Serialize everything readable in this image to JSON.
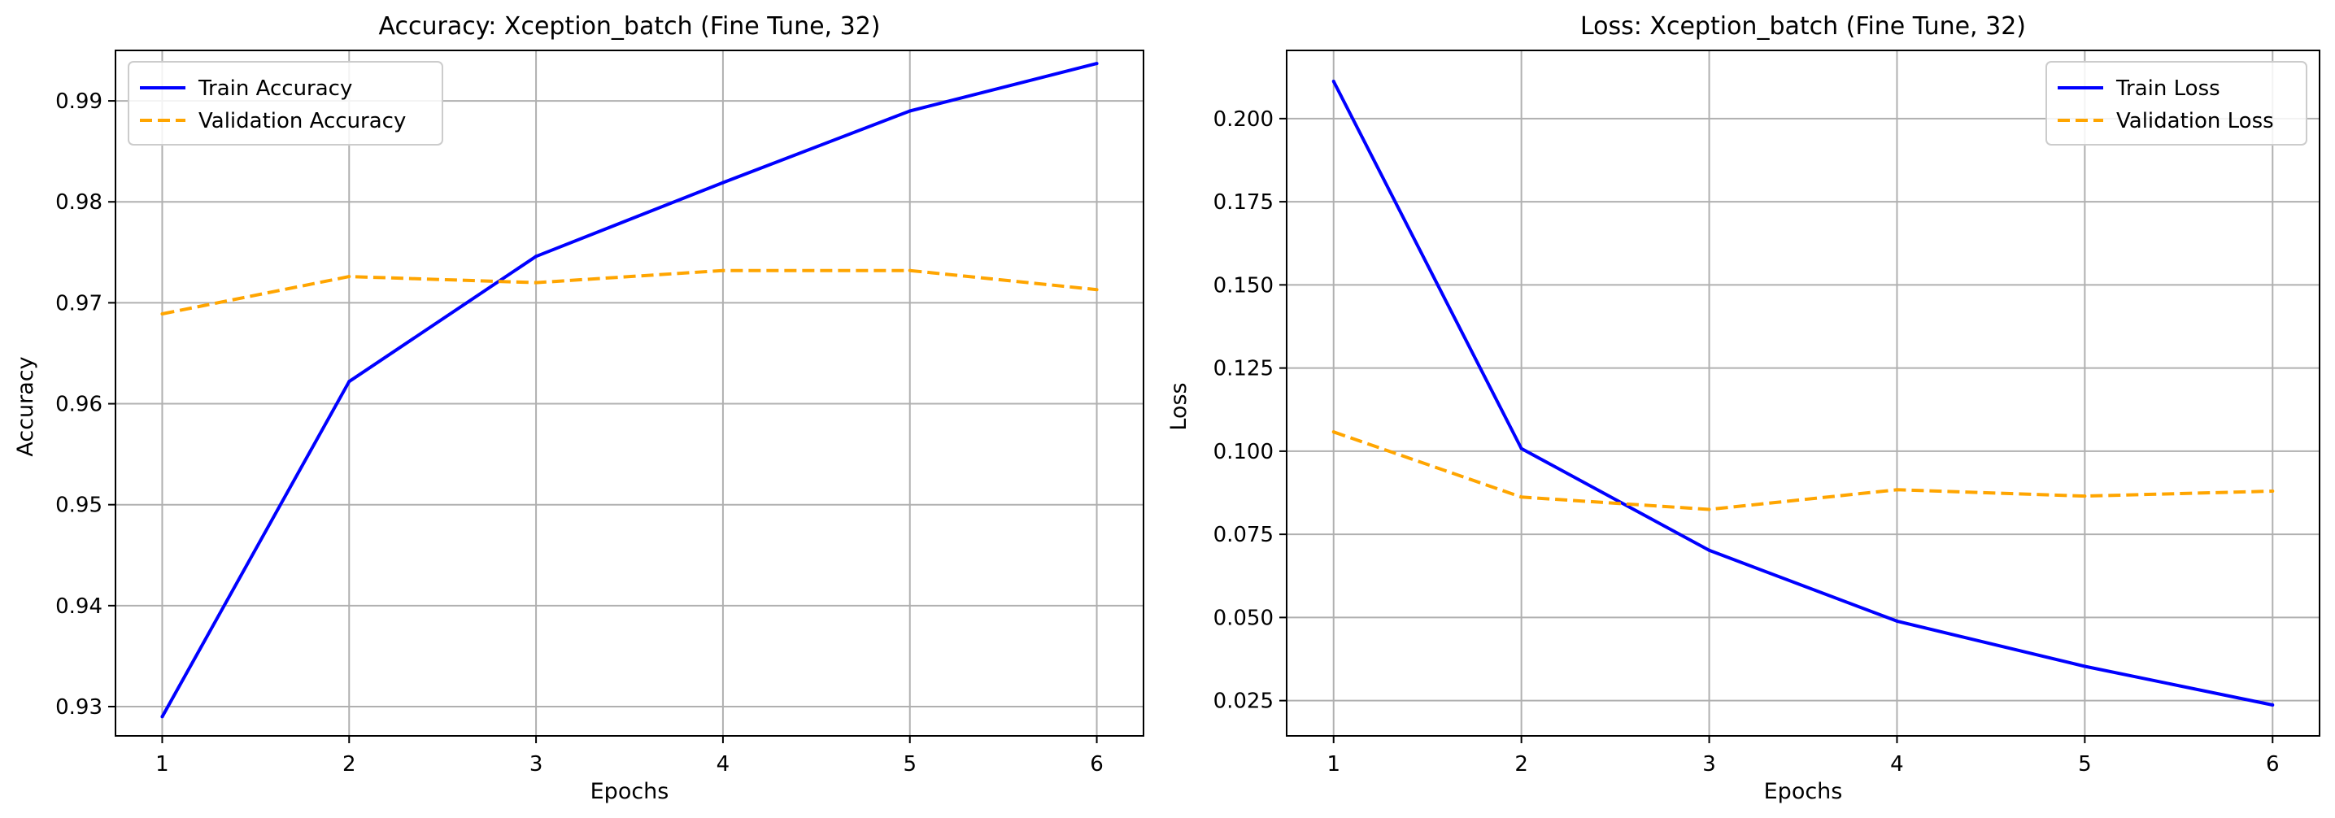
{
  "chart_data": [
    {
      "type": "line",
      "title": "Accuracy: Xception_batch (Fine Tune, 32)",
      "xlabel": "Epochs",
      "ylabel": "Accuracy",
      "x": [
        1,
        2,
        3,
        4,
        5,
        6
      ],
      "xticks": [
        "1",
        "2",
        "3",
        "4",
        "5",
        "6"
      ],
      "yticks": [
        "0.93",
        "0.94",
        "0.95",
        "0.96",
        "0.97",
        "0.98",
        "0.99"
      ],
      "xlim": [
        0.75,
        6.25
      ],
      "ylim": [
        0.9271,
        0.995
      ],
      "grid": true,
      "legend_position": "upper-left",
      "series": [
        {
          "name": "Train Accuracy",
          "color": "#0000ff",
          "style": "solid",
          "values": [
            0.929,
            0.9622,
            0.9746,
            0.9819,
            0.989,
            0.9937
          ]
        },
        {
          "name": "Validation Accuracy",
          "color": "#ffa500",
          "style": "dashed",
          "values": [
            0.9689,
            0.9726,
            0.972,
            0.9732,
            0.9732,
            0.9713
          ]
        }
      ]
    },
    {
      "type": "line",
      "title": "Loss: Xception_batch (Fine Tune, 32)",
      "xlabel": "Epochs",
      "ylabel": "Loss",
      "x": [
        1,
        2,
        3,
        4,
        5,
        6
      ],
      "xticks": [
        "1",
        "2",
        "3",
        "4",
        "5",
        "6"
      ],
      "yticks": [
        "0.025",
        "0.050",
        "0.075",
        "0.100",
        "0.125",
        "0.150",
        "0.175",
        "0.200"
      ],
      "xlim": [
        0.75,
        6.25
      ],
      "ylim": [
        0.0144,
        0.2205
      ],
      "grid": true,
      "legend_position": "upper-right",
      "series": [
        {
          "name": "Train Loss",
          "color": "#0000ff",
          "style": "solid",
          "values": [
            0.2112,
            0.1008,
            0.0702,
            0.0489,
            0.0353,
            0.0237
          ]
        },
        {
          "name": "Validation Loss",
          "color": "#ffa500",
          "style": "dashed",
          "values": [
            0.1058,
            0.0862,
            0.0825,
            0.0884,
            0.0865,
            0.088
          ]
        }
      ]
    }
  ]
}
